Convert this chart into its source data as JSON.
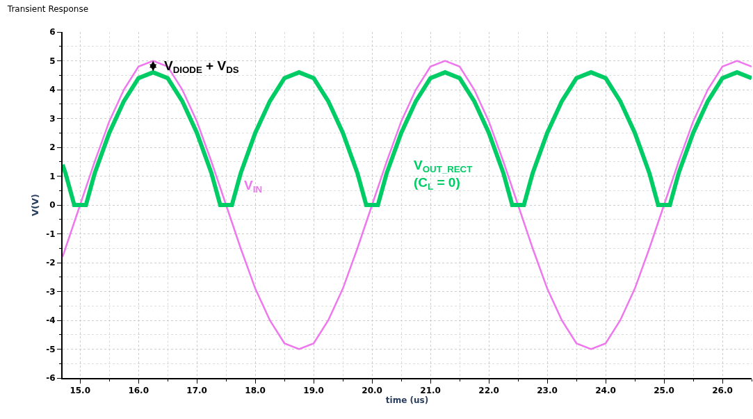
{
  "chart_data": {
    "type": "line",
    "title": "Transient Response",
    "xlabel": "time (us)",
    "ylabel": "V(V)",
    "xlim": [
      14.7,
      26.5
    ],
    "ylim": [
      -6,
      6
    ],
    "xticks": [
      {
        "value": 15,
        "label": "15.0"
      },
      {
        "value": 16,
        "label": "16.0"
      },
      {
        "value": 17,
        "label": "17.0"
      },
      {
        "value": 18,
        "label": "18.0"
      },
      {
        "value": 19,
        "label": "19.0"
      },
      {
        "value": 20,
        "label": "20.0"
      },
      {
        "value": 21,
        "label": "21.0"
      },
      {
        "value": 22,
        "label": "22.0"
      },
      {
        "value": 23,
        "label": "23.0"
      },
      {
        "value": 24,
        "label": "24.0"
      },
      {
        "value": 25,
        "label": "25.0"
      },
      {
        "value": 26,
        "label": "26.0"
      }
    ],
    "yticks": [
      -6,
      -5,
      -4,
      -3,
      -2,
      -1,
      0,
      1,
      2,
      3,
      4,
      5,
      6
    ],
    "grid": true,
    "marker": "none",
    "line_style": "solid",
    "series": [
      {
        "color": "#ee77ee",
        "x": [
          14.7,
          14.75,
          15.0,
          15.25,
          15.5,
          15.75,
          16.0,
          16.25,
          16.5,
          16.75,
          17.0,
          17.25,
          17.5,
          17.75,
          18.0,
          18.25,
          18.5,
          18.75,
          19.0,
          19.25,
          19.5,
          19.75,
          20.0,
          20.25,
          20.5,
          20.75,
          21.0,
          21.25,
          21.5,
          21.75,
          22.0,
          22.25,
          22.5,
          22.75,
          23.0,
          23.25,
          23.5,
          23.75,
          24.0,
          24.25,
          24.5,
          24.75,
          25.0,
          25.25,
          25.5,
          25.75,
          26.0,
          26.25,
          26.5
        ],
        "values": [
          -1.8,
          -1.5,
          0,
          1.5,
          2.9,
          4,
          4.8,
          5,
          4.8,
          4,
          2.9,
          1.5,
          0,
          -1.5,
          -2.9,
          -4,
          -4.8,
          -5,
          -4.8,
          -4,
          -2.9,
          -1.5,
          0,
          1.5,
          2.9,
          4,
          4.8,
          5,
          4.8,
          4,
          2.9,
          1.5,
          0,
          -1.5,
          -2.9,
          -4,
          -4.8,
          -5,
          -4.8,
          -4,
          -2.9,
          -1.5,
          0,
          1.5,
          2.9,
          4,
          4.8,
          5,
          4.8
        ]
      },
      {
        "color": "#00cc66",
        "x": [
          14.7,
          14.75,
          14.9,
          15.0,
          15.1,
          15.25,
          15.5,
          15.75,
          16.0,
          16.25,
          16.5,
          16.75,
          17.0,
          17.25,
          17.4,
          17.5,
          17.6,
          17.75,
          18.0,
          18.25,
          18.5,
          18.75,
          19.0,
          19.25,
          19.5,
          19.75,
          19.9,
          20.0,
          20.1,
          20.25,
          20.5,
          20.75,
          21.0,
          21.25,
          21.5,
          21.75,
          22.0,
          22.25,
          22.4,
          22.5,
          22.6,
          22.75,
          23.0,
          23.25,
          23.5,
          23.75,
          24.0,
          24.25,
          24.5,
          24.75,
          24.9,
          25.0,
          25.1,
          25.25,
          25.5,
          25.75,
          26.0,
          26.25,
          26.5
        ],
        "values": [
          1.4,
          1.1,
          0,
          0,
          0,
          1.1,
          2.5,
          3.6,
          4.4,
          4.6,
          4.4,
          3.6,
          2.5,
          1.1,
          0,
          0,
          0,
          1.1,
          2.5,
          3.6,
          4.4,
          4.6,
          4.4,
          3.6,
          2.5,
          1.1,
          0,
          0,
          0,
          1.1,
          2.5,
          3.6,
          4.4,
          4.6,
          4.4,
          3.6,
          2.5,
          1.1,
          0,
          0,
          0,
          1.1,
          2.5,
          3.6,
          4.4,
          4.6,
          4.4,
          3.6,
          2.5,
          1.1,
          0,
          0,
          0,
          1.1,
          2.5,
          3.6,
          4.4,
          4.6,
          4.4
        ]
      }
    ],
    "annotations": [
      {
        "text": "V$_{DIODE}$ + V$_{DS}$",
        "x": 16.25,
        "y": 4.8
      },
      {
        "text": "V$_{IN}$",
        "x": 17.25,
        "y": 1.5
      },
      {
        "text": "V$_{OUT_RECT}$\n(C$_{L}$ = 0)",
        "x": 20.5,
        "y": 2.5
      }
    ]
  }
}
